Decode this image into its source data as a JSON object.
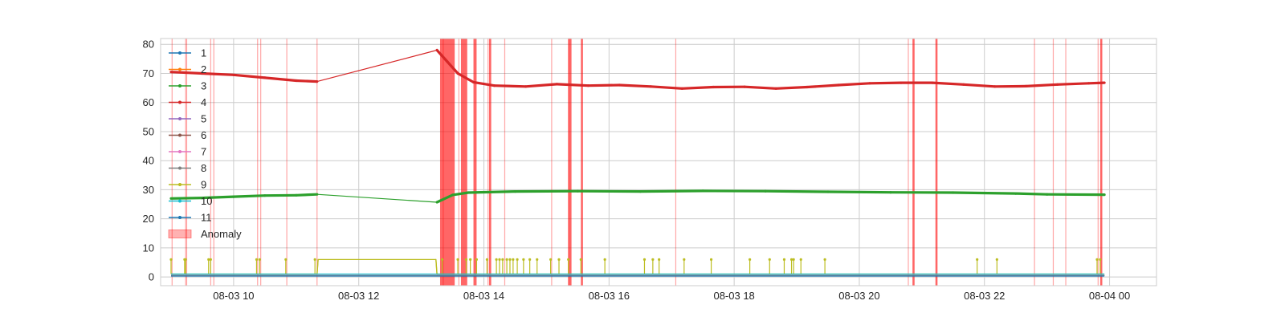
{
  "chart_data": {
    "type": "line",
    "title": "",
    "xlabel": "",
    "ylabel": "",
    "x_range": [
      "2024-08-03 08:50",
      "2024-08-04 00:45"
    ],
    "ylim": [
      -3,
      82
    ],
    "grid": true,
    "legend_placement": "top-left",
    "x_tick_labels": [
      "08-03 10",
      "08-03 12",
      "08-03 14",
      "08-03 16",
      "08-03 18",
      "08-03 20",
      "08-03 22",
      "08-04 00"
    ],
    "x_ticks": [
      "2024-08-03 10:00",
      "2024-08-03 12:00",
      "2024-08-03 14:00",
      "2024-08-03 16:00",
      "2024-08-03 18:00",
      "2024-08-03 20:00",
      "2024-08-03 22:00",
      "2024-08-04 00:00"
    ],
    "y_ticks": [
      0,
      10,
      20,
      30,
      40,
      50,
      60,
      70,
      80
    ],
    "series": [
      {
        "name": "1",
        "color": "#1f77b4",
        "points": [
          [
            "2024-08-03 09:00",
            0.5
          ],
          [
            "2024-08-03 11:20",
            0.5
          ],
          [
            "2024-08-03 13:15",
            0.5
          ],
          [
            "2024-08-03 23:55",
            0.5
          ]
        ]
      },
      {
        "name": "2",
        "color": "#ff7f0e",
        "points": [
          [
            "2024-08-03 09:00",
            0.5
          ],
          [
            "2024-08-03 11:20",
            0.5
          ],
          [
            "2024-08-03 13:15",
            0.5
          ],
          [
            "2024-08-03 23:55",
            0.5
          ]
        ]
      },
      {
        "name": "3",
        "color": "#2ca02c",
        "points": [
          [
            "2024-08-03 09:00",
            27
          ],
          [
            "2024-08-03 09:30",
            27.2
          ],
          [
            "2024-08-03 10:00",
            27.6
          ],
          [
            "2024-08-03 10:30",
            28
          ],
          [
            "2024-08-03 11:00",
            28.1
          ],
          [
            "2024-08-03 11:20",
            28.4
          ],
          [
            "2024-08-03 13:15",
            25.7
          ],
          [
            "2024-08-03 13:30",
            28.2
          ],
          [
            "2024-08-03 13:45",
            29
          ],
          [
            "2024-08-03 14:30",
            29.4
          ],
          [
            "2024-08-03 15:30",
            29.5
          ],
          [
            "2024-08-03 16:30",
            29.4
          ],
          [
            "2024-08-03 17:30",
            29.6
          ],
          [
            "2024-08-03 18:30",
            29.5
          ],
          [
            "2024-08-03 19:30",
            29.3
          ],
          [
            "2024-08-03 20:30",
            29.1
          ],
          [
            "2024-08-03 21:30",
            29.0
          ],
          [
            "2024-08-03 22:30",
            28.7
          ],
          [
            "2024-08-03 23:00",
            28.4
          ],
          [
            "2024-08-03 23:55",
            28.3
          ]
        ]
      },
      {
        "name": "4",
        "color": "#d62728",
        "points": [
          [
            "2024-08-03 09:00",
            70.5
          ],
          [
            "2024-08-03 09:30",
            70
          ],
          [
            "2024-08-03 10:00",
            69.5
          ],
          [
            "2024-08-03 10:30",
            68.5
          ],
          [
            "2024-08-03 11:00",
            67.5
          ],
          [
            "2024-08-03 11:20",
            67.2
          ],
          [
            "2024-08-03 13:15",
            78
          ],
          [
            "2024-08-03 13:25",
            74
          ],
          [
            "2024-08-03 13:35",
            70
          ],
          [
            "2024-08-03 13:50",
            67
          ],
          [
            "2024-08-03 14:10",
            65.8
          ],
          [
            "2024-08-03 14:40",
            65.5
          ],
          [
            "2024-08-03 15:10",
            66.3
          ],
          [
            "2024-08-03 15:40",
            65.8
          ],
          [
            "2024-08-03 16:10",
            66
          ],
          [
            "2024-08-03 16:40",
            65.5
          ],
          [
            "2024-08-03 17:10",
            64.8
          ],
          [
            "2024-08-03 17:40",
            65.3
          ],
          [
            "2024-08-03 18:10",
            65.4
          ],
          [
            "2024-08-03 18:40",
            64.8
          ],
          [
            "2024-08-03 19:10",
            65.3
          ],
          [
            "2024-08-03 19:40",
            66
          ],
          [
            "2024-08-03 20:10",
            66.6
          ],
          [
            "2024-08-03 20:40",
            66.8
          ],
          [
            "2024-08-03 21:10",
            66.8
          ],
          [
            "2024-08-03 21:40",
            66.2
          ],
          [
            "2024-08-03 22:10",
            65.5
          ],
          [
            "2024-08-03 22:40",
            65.6
          ],
          [
            "2024-08-03 23:10",
            66.2
          ],
          [
            "2024-08-03 23:40",
            66.6
          ],
          [
            "2024-08-03 23:55",
            66.8
          ]
        ]
      },
      {
        "name": "5",
        "color": "#9467bd",
        "points": [
          [
            "2024-08-03 09:00",
            0.5
          ],
          [
            "2024-08-03 11:20",
            0.5
          ],
          [
            "2024-08-03 13:15",
            0.5
          ],
          [
            "2024-08-03 23:55",
            0.5
          ]
        ]
      },
      {
        "name": "6",
        "color": "#8c564b",
        "points": [
          [
            "2024-08-03 09:00",
            0.5
          ],
          [
            "2024-08-03 11:20",
            0.5
          ],
          [
            "2024-08-03 13:15",
            0.5
          ],
          [
            "2024-08-03 23:55",
            0.5
          ]
        ]
      },
      {
        "name": "7",
        "color": "#e377c2",
        "points": [
          [
            "2024-08-03 09:00",
            0.5
          ],
          [
            "2024-08-03 11:20",
            0.5
          ],
          [
            "2024-08-03 13:15",
            0.5
          ],
          [
            "2024-08-03 23:55",
            0.5
          ]
        ]
      },
      {
        "name": "8",
        "color": "#7f7f7f",
        "points": [
          [
            "2024-08-03 09:00",
            0.5
          ],
          [
            "2024-08-03 11:20",
            0.5
          ],
          [
            "2024-08-03 13:15",
            0.5
          ],
          [
            "2024-08-03 23:55",
            0.5
          ]
        ]
      },
      {
        "name": "9",
        "color": "#bcbd22",
        "points": [
          [
            "2024-08-03 09:00",
            1
          ],
          [
            "2024-08-03 11:20",
            1
          ],
          [
            "2024-08-03 11:21",
            6
          ],
          [
            "2024-08-03 13:14",
            6
          ],
          [
            "2024-08-03 13:15",
            1
          ],
          [
            "2024-08-03 23:55",
            1
          ]
        ],
        "spikes": {
          "value": 6,
          "times": [
            "2024-08-03 09:00",
            "2024-08-03 09:13",
            "2024-08-03 09:14",
            "2024-08-03 09:36",
            "2024-08-03 09:38",
            "2024-08-03 10:22",
            "2024-08-03 10:25",
            "2024-08-03 10:50",
            "2024-08-03 11:18",
            "2024-08-03 13:20",
            "2024-08-03 13:35",
            "2024-08-03 13:43",
            "2024-08-03 13:47",
            "2024-08-03 13:53",
            "2024-08-03 14:03",
            "2024-08-03 14:12",
            "2024-08-03 14:15",
            "2024-08-03 14:18",
            "2024-08-03 14:22",
            "2024-08-03 14:25",
            "2024-08-03 14:28",
            "2024-08-03 14:32",
            "2024-08-03 14:38",
            "2024-08-03 14:44",
            "2024-08-03 14:51",
            "2024-08-03 15:04",
            "2024-08-03 15:12",
            "2024-08-03 15:21",
            "2024-08-03 15:33",
            "2024-08-03 15:56",
            "2024-08-03 16:34",
            "2024-08-03 16:42",
            "2024-08-03 16:48",
            "2024-08-03 17:12",
            "2024-08-03 17:38",
            "2024-08-03 18:15",
            "2024-08-03 18:34",
            "2024-08-03 18:48",
            "2024-08-03 18:55",
            "2024-08-03 18:57",
            "2024-08-03 19:04",
            "2024-08-03 19:27",
            "2024-08-03 21:53",
            "2024-08-03 22:12",
            "2024-08-03 23:48",
            "2024-08-03 23:51"
          ]
        }
      },
      {
        "name": "10",
        "color": "#17becf",
        "points": [
          [
            "2024-08-03 09:00",
            1
          ],
          [
            "2024-08-03 11:20",
            1
          ],
          [
            "2024-08-03 13:15",
            1
          ],
          [
            "2024-08-03 23:55",
            1
          ]
        ]
      },
      {
        "name": "11",
        "color": "#1f77b4",
        "points": [
          [
            "2024-08-03 09:00",
            0.3
          ],
          [
            "2024-08-03 11:20",
            0.3
          ],
          [
            "2024-08-03 13:15",
            0.3
          ],
          [
            "2024-08-03 23:55",
            0.3
          ]
        ]
      }
    ],
    "anomaly": {
      "name": "Anomaly",
      "color": "#ff0000",
      "times": [
        "2024-08-03 09:01",
        "2024-08-03 09:14",
        "2024-08-03 09:15",
        "2024-08-03 09:38",
        "2024-08-03 09:41",
        "2024-08-03 10:23",
        "2024-08-03 10:26",
        "2024-08-03 10:51",
        "2024-08-03 11:20",
        "2024-08-03 13:21",
        "2024-08-03 13:36",
        "2024-08-03 14:04",
        "2024-08-03 14:20",
        "2024-08-03 15:05",
        "2024-08-03 15:21",
        "2024-08-03 17:04",
        "2024-08-03 20:47",
        "2024-08-03 22:48",
        "2024-08-03 23:06",
        "2024-08-03 23:18",
        "2024-08-03 23:49"
      ],
      "bands": [
        [
          "2024-08-03 13:18",
          "2024-08-03 13:32"
        ],
        [
          "2024-08-03 13:38",
          "2024-08-03 13:44"
        ],
        [
          "2024-08-03 13:50",
          "2024-08-03 13:53"
        ],
        [
          "2024-08-03 14:05",
          "2024-08-03 14:07"
        ],
        [
          "2024-08-03 15:21",
          "2024-08-03 15:24"
        ],
        [
          "2024-08-03 15:33",
          "2024-08-03 15:35"
        ],
        [
          "2024-08-03 20:51",
          "2024-08-03 20:53"
        ],
        [
          "2024-08-03 21:13",
          "2024-08-03 21:15"
        ],
        [
          "2024-08-03 23:51",
          "2024-08-03 23:53"
        ]
      ]
    }
  }
}
